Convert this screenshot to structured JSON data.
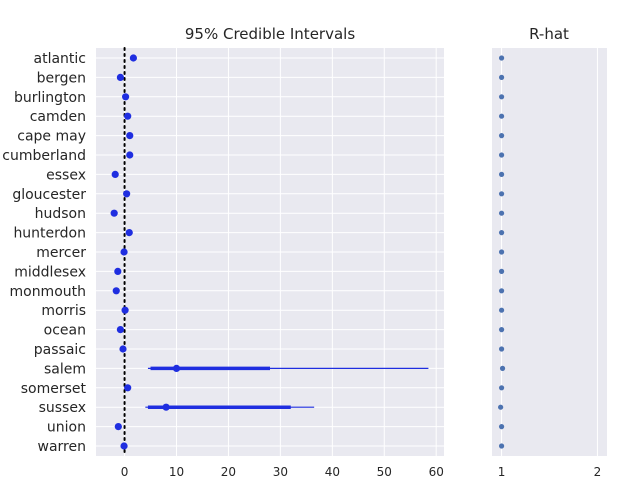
{
  "chart_data": [
    {
      "type": "forest",
      "title": "95% Credible Intervals",
      "xlim": [
        -5.5,
        61.5
      ],
      "xticks": [
        0,
        10,
        20,
        30,
        40,
        50,
        60
      ],
      "reference_line": 0,
      "categories": [
        "atlantic",
        "bergen",
        "burlington",
        "camden",
        "cape may",
        "cumberland",
        "essex",
        "gloucester",
        "hudson",
        "hunterdon",
        "mercer",
        "middlesex",
        "monmouth",
        "morris",
        "ocean",
        "passaic",
        "salem",
        "somerset",
        "sussex",
        "union",
        "warren"
      ],
      "series": [
        {
          "estimates": [
            1.7,
            -0.8,
            0.2,
            0.6,
            1.0,
            1.0,
            -1.8,
            0.4,
            -2.0,
            0.9,
            -0.1,
            -1.3,
            -1.6,
            0.1,
            -0.8,
            -0.3,
            10.0,
            0.6,
            8.0,
            -1.2,
            -0.1
          ],
          "interval_low": [
            1.3,
            -1.1,
            -0.1,
            0.3,
            0.7,
            0.7,
            -2.1,
            0.1,
            -2.3,
            0.6,
            -0.4,
            -1.6,
            -1.9,
            -0.2,
            -1.1,
            -0.6,
            4.5,
            0.3,
            4.0,
            -1.5,
            -0.4
          ],
          "interval_high": [
            2.0,
            -0.5,
            0.5,
            0.9,
            1.3,
            1.3,
            -1.5,
            0.7,
            -1.7,
            1.2,
            0.2,
            -1.0,
            -1.3,
            0.4,
            -0.5,
            0.0,
            58.5,
            0.9,
            36.5,
            -0.9,
            0.2
          ],
          "iqr_low": [
            1.4,
            -1.0,
            0.0,
            0.4,
            0.8,
            0.8,
            -2.0,
            0.2,
            -2.2,
            0.7,
            -0.3,
            -1.5,
            -1.8,
            -0.1,
            -1.0,
            -0.5,
            5.0,
            0.4,
            4.5,
            -1.4,
            -0.3
          ],
          "iqr_high": [
            1.9,
            -0.6,
            0.4,
            0.8,
            1.2,
            1.2,
            -1.6,
            0.6,
            -1.8,
            1.1,
            0.1,
            -1.1,
            -1.4,
            0.3,
            -0.6,
            -0.1,
            28.0,
            0.8,
            32.0,
            -1.0,
            0.1
          ]
        }
      ],
      "colors": {
        "marker": "#1f2ee0",
        "reference": "#000000"
      }
    },
    {
      "type": "scatter",
      "title": "R-hat",
      "xlim": [
        0.9,
        2.1
      ],
      "xticks": [
        1,
        2
      ],
      "values": [
        1.0,
        1.0,
        1.0,
        1.0,
        1.0,
        1.0,
        1.0,
        1.0,
        1.0,
        1.0,
        1.0,
        1.0,
        1.0,
        1.0,
        1.0,
        1.0,
        1.01,
        1.0,
        0.99,
        1.0,
        1.0
      ],
      "colors": {
        "marker": "#4c72b0"
      }
    }
  ]
}
